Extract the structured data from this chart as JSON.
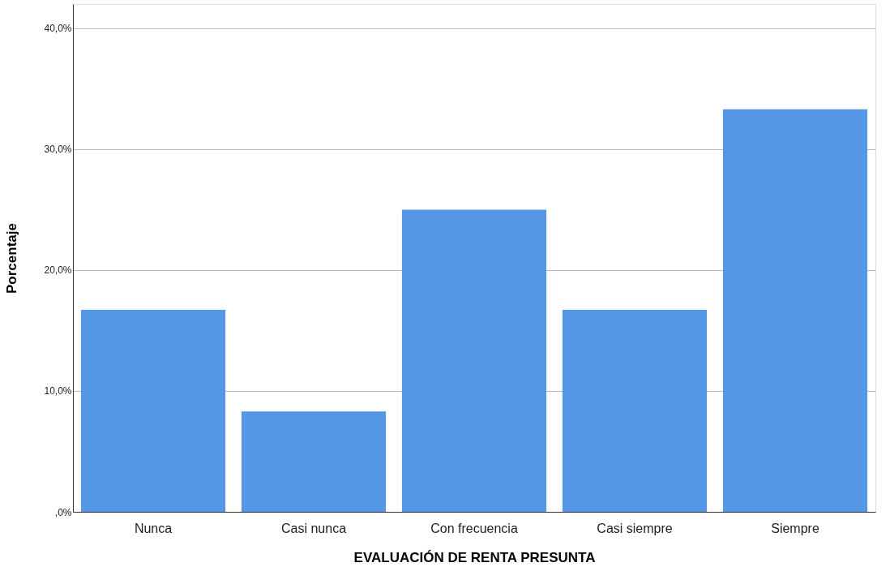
{
  "chart_data": {
    "type": "bar",
    "xlabel": "EVALUACIÓN DE RENTA PRESUNTA",
    "ylabel": "Porcentaje",
    "categories": [
      "Nunca",
      "Casi nunca",
      "Con frecuencia",
      "Casi siempre",
      "Siempre"
    ],
    "values": [
      16.7,
      8.3,
      25.0,
      16.7,
      33.3
    ],
    "color": "#5596e6",
    "ylim": [
      0,
      42
    ],
    "yticks": [
      {
        "value": 0,
        "label": ",0%"
      },
      {
        "value": 10,
        "label": "10,0%"
      },
      {
        "value": 20,
        "label": "20,0%"
      },
      {
        "value": 30,
        "label": "30,0%"
      },
      {
        "value": 40,
        "label": "40,0%"
      }
    ],
    "grid": "y"
  }
}
